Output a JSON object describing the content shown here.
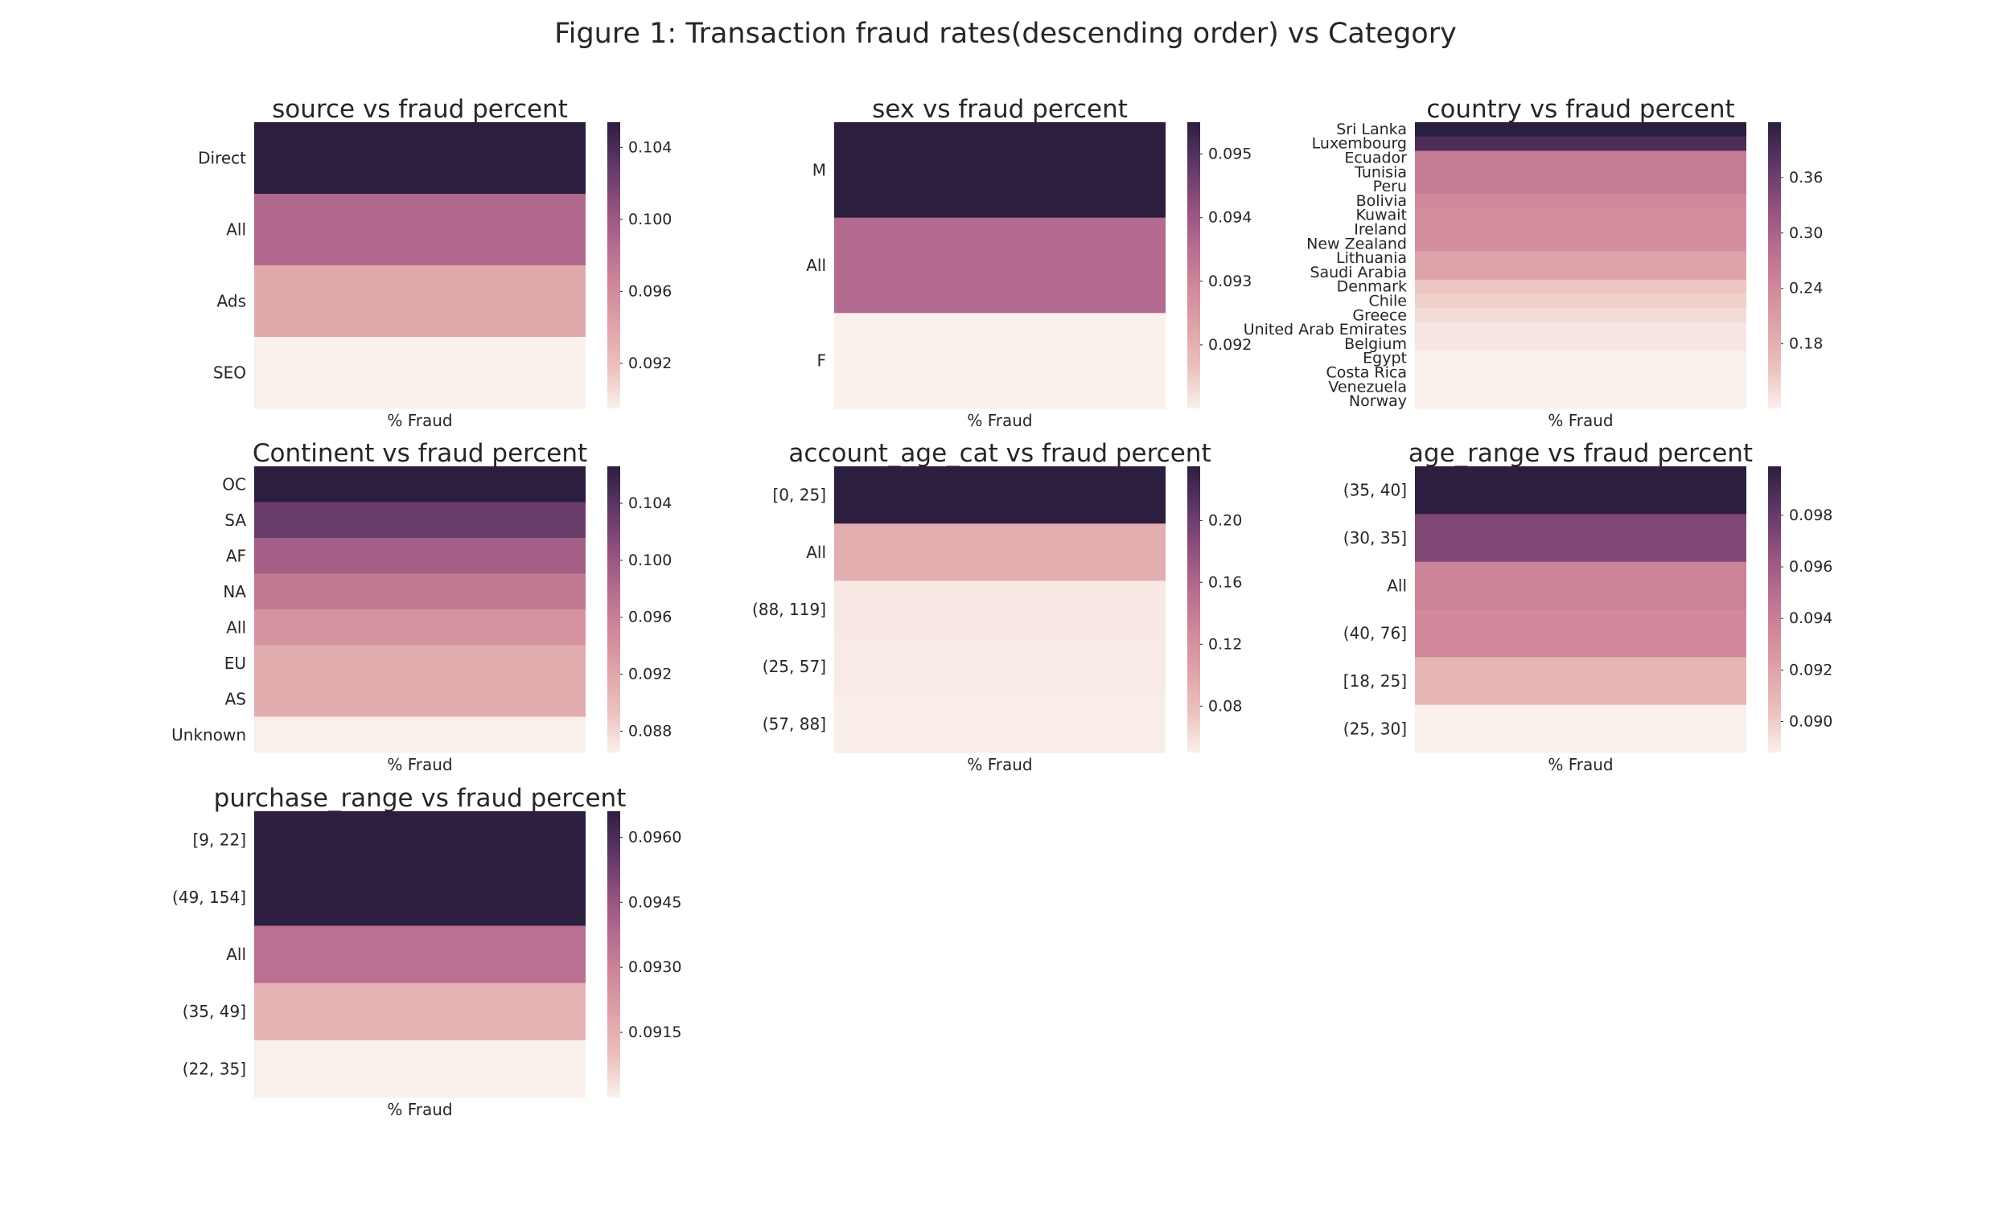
{
  "figure_title": "Figure 1: Transaction fraud rates(descending order) vs Category",
  "colormap": [
    "#faf0ec",
    "#ebc2bd",
    "#dea4a9",
    "#cf8799",
    "#b46b8f",
    "#8f4f7c",
    "#5d3666",
    "#2c1e3e"
  ],
  "chart_data": [
    {
      "type": "heatmap",
      "title": "source vs fraud percent",
      "xlabel": "% Fraud",
      "categories": [
        "Direct",
        "All",
        "Ads",
        "SEO"
      ],
      "values": [
        0.1054,
        0.0988,
        0.0937,
        0.0895
      ],
      "colorbar": {
        "min": 0.0895,
        "max": 0.1054,
        "ticks": [
          0.092,
          0.096,
          0.1,
          0.104
        ],
        "tick_labels": [
          "0.092",
          "0.096",
          "0.100",
          "0.104"
        ]
      }
    },
    {
      "type": "heatmap",
      "title": "sex vs fraud percent",
      "xlabel": "% Fraud",
      "categories": [
        "M",
        "All",
        "F"
      ],
      "values": [
        0.0955,
        0.0936,
        0.091
      ],
      "colorbar": {
        "min": 0.091,
        "max": 0.0955,
        "ticks": [
          0.092,
          0.093,
          0.094,
          0.095
        ],
        "tick_labels": [
          "0.092",
          "0.093",
          "0.094",
          "0.095"
        ]
      }
    },
    {
      "type": "heatmap",
      "title": "country vs fraud percent",
      "xlabel": "% Fraud",
      "categories": [
        "Sri Lanka",
        "Luxembourg",
        "Ecuador",
        "Tunisia",
        "Peru",
        "Bolivia",
        "Kuwait",
        "Ireland",
        "New Zealand",
        "Lithuania",
        "Saudi Arabia",
        "Denmark",
        "Chile",
        "Greece",
        "United Arab Emirates",
        "Belgium",
        "Egypt",
        "Costa Rica",
        "Venezuela",
        "Norway"
      ],
      "values": [
        0.42,
        0.39,
        0.26,
        0.26,
        0.26,
        0.24,
        0.23,
        0.23,
        0.23,
        0.2,
        0.2,
        0.15,
        0.14,
        0.13,
        0.12,
        0.12,
        0.11,
        0.11,
        0.11,
        0.11
      ],
      "colorbar": {
        "min": 0.11,
        "max": 0.42,
        "ticks": [
          0.18,
          0.24,
          0.3,
          0.36
        ],
        "tick_labels": [
          "0.18",
          "0.24",
          "0.30",
          "0.36"
        ]
      }
    },
    {
      "type": "heatmap",
      "title": "Continent vs fraud percent",
      "xlabel": "% Fraud",
      "categories": [
        "OC",
        "SA",
        "AF",
        "NA",
        "All",
        "EU",
        "AS",
        "Unknown"
      ],
      "values": [
        0.1066,
        0.103,
        0.0992,
        0.0966,
        0.0938,
        0.0915,
        0.0915,
        0.0865
      ],
      "colorbar": {
        "min": 0.0865,
        "max": 0.1066,
        "ticks": [
          0.088,
          0.092,
          0.096,
          0.1,
          0.104
        ],
        "tick_labels": [
          "0.088",
          "0.092",
          "0.096",
          "0.100",
          "0.104"
        ]
      }
    },
    {
      "type": "heatmap",
      "title": "account_age_cat vs fraud percent",
      "xlabel": "% Fraud",
      "categories": [
        "[0, 25]",
        "All",
        "(88, 119]",
        "(25, 57]",
        "(57, 88]"
      ],
      "values": [
        0.235,
        0.094,
        0.054,
        0.053,
        0.052
      ],
      "colorbar": {
        "min": 0.05,
        "max": 0.235,
        "ticks": [
          0.08,
          0.12,
          0.16,
          0.2
        ],
        "tick_labels": [
          "0.08",
          "0.12",
          "0.16",
          "0.20"
        ]
      }
    },
    {
      "type": "heatmap",
      "title": "age_range vs fraud percent",
      "xlabel": "% Fraud",
      "categories": [
        "(35, 40]",
        "(30, 35]",
        "All",
        "(40, 76]",
        "[18, 25]",
        "(25, 30]"
      ],
      "values": [
        0.0999,
        0.0972,
        0.0938,
        0.0935,
        0.091,
        0.0888
      ],
      "colorbar": {
        "min": 0.0888,
        "max": 0.0999,
        "ticks": [
          0.09,
          0.092,
          0.094,
          0.096,
          0.098
        ],
        "tick_labels": [
          "0.090",
          "0.092",
          "0.094",
          "0.096",
          "0.098"
        ]
      }
    },
    {
      "type": "heatmap",
      "title": "purchase_range vs fraud percent",
      "xlabel": "% Fraud",
      "categories": [
        "[9, 22]",
        "(49, 154]",
        "All",
        "(35, 49]",
        "(22, 35]"
      ],
      "values": [
        0.0966,
        0.0966,
        0.0936,
        0.0914,
        0.09
      ],
      "colorbar": {
        "min": 0.09,
        "max": 0.0966,
        "ticks": [
          0.0915,
          0.093,
          0.0945,
          0.096
        ],
        "tick_labels": [
          "0.0915",
          "0.0930",
          "0.0945",
          "0.0960"
        ]
      }
    }
  ]
}
